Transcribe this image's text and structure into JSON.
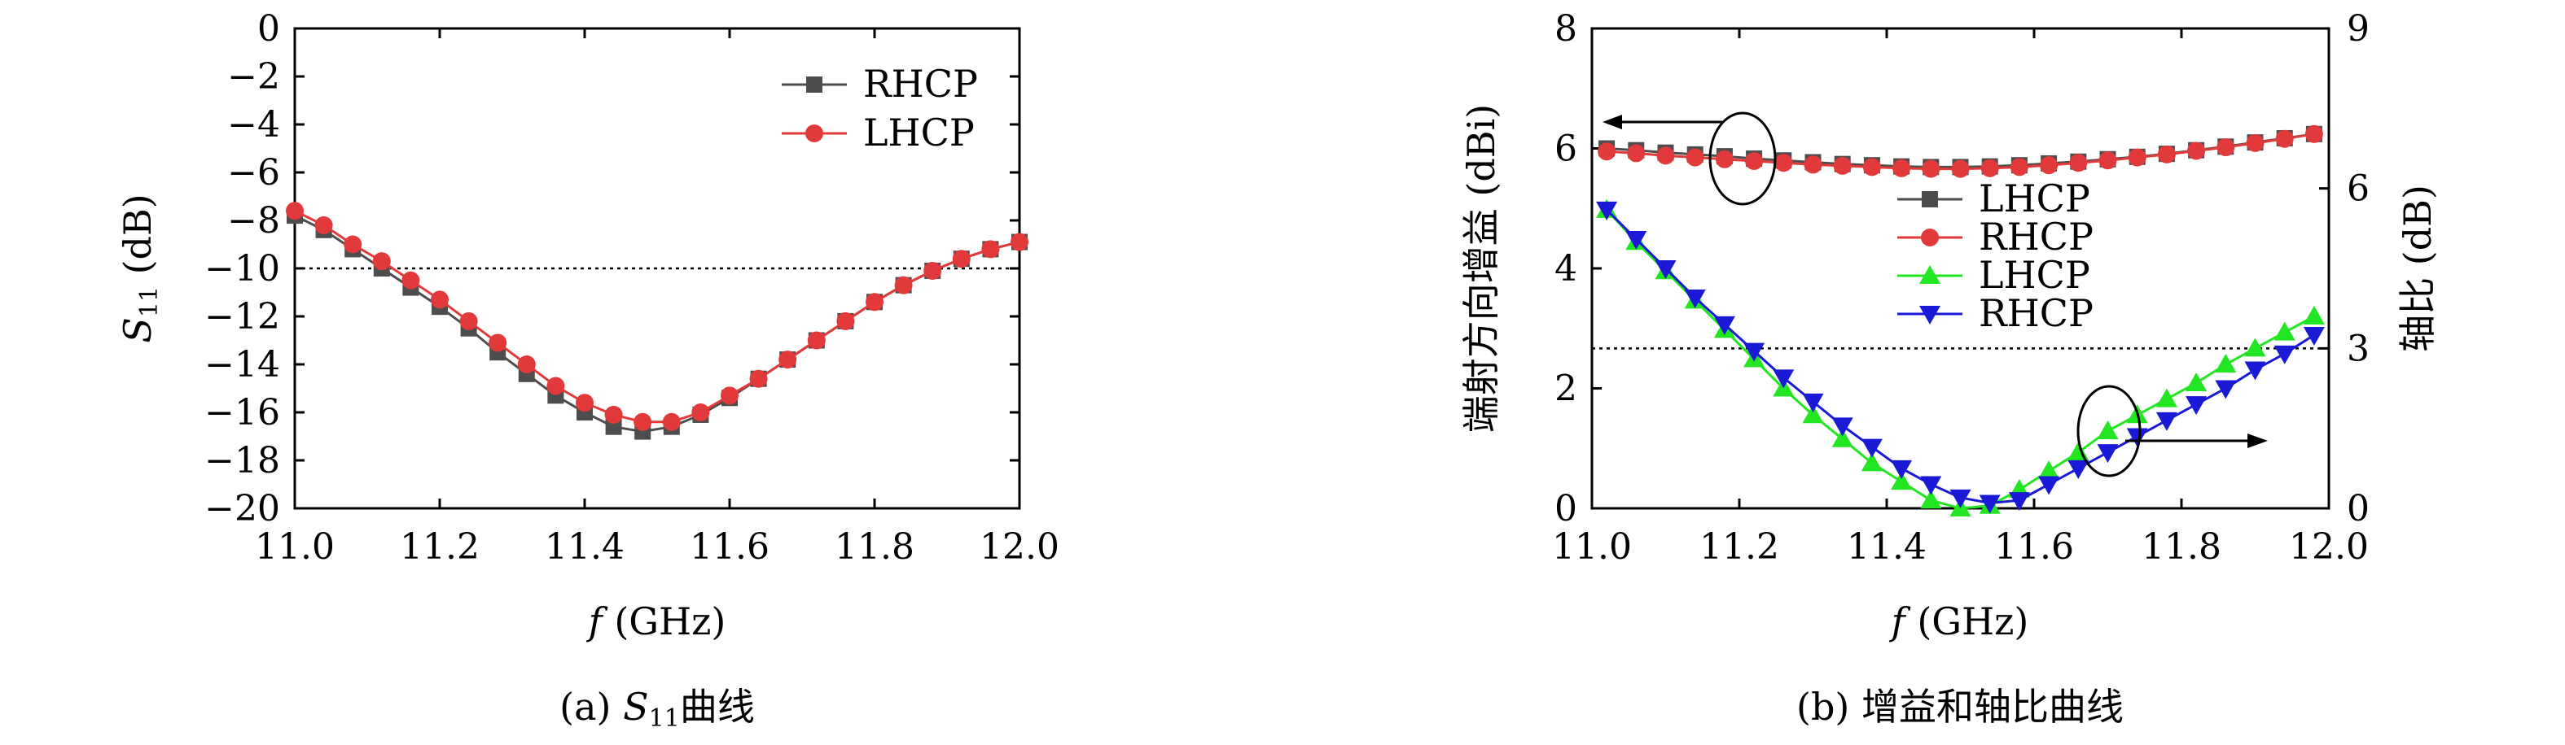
{
  "colors": {
    "dark": "#4d4d4d",
    "red": "#e23a3a",
    "green": "#22e622",
    "blue": "#1a1ad6",
    "ref": "#000000"
  },
  "chart_data": [
    {
      "type": "line",
      "panel_caption_prefix": "(a) ",
      "panel_caption_sym": "S",
      "panel_caption_sub": "11",
      "panel_caption_suffix": "曲线",
      "xlabel_sym": "f",
      "xlabel_unit": " (GHz)",
      "ylabel_sym": "S",
      "ylabel_sub": "11",
      "ylabel_unit": " (dB)",
      "xlim": [
        11.0,
        12.0
      ],
      "ylim": [
        -20,
        0
      ],
      "x_ticks": [
        "11.0",
        "11.2",
        "11.4",
        "11.6",
        "11.8",
        "12.0"
      ],
      "y_ticks": [
        "0",
        "−2",
        "−4",
        "−6",
        "−8",
        "−10",
        "−12",
        "−14",
        "−16",
        "−18",
        "−20"
      ],
      "reference_y": -10,
      "legend_position": "top-right",
      "x": [
        11.0,
        11.04,
        11.08,
        11.12,
        11.16,
        11.2,
        11.24,
        11.28,
        11.32,
        11.36,
        11.4,
        11.44,
        11.48,
        11.52,
        11.56,
        11.6,
        11.64,
        11.68,
        11.72,
        11.76,
        11.8,
        11.84,
        11.88,
        11.92,
        11.96,
        12.0
      ],
      "series": [
        {
          "name": "RHCP",
          "marker": "square",
          "color_key": "dark",
          "values": [
            -7.8,
            -8.4,
            -9.2,
            -10.0,
            -10.8,
            -11.6,
            -12.5,
            -13.5,
            -14.4,
            -15.3,
            -16.0,
            -16.6,
            -16.8,
            -16.6,
            -16.1,
            -15.4,
            -14.6,
            -13.8,
            -13.0,
            -12.2,
            -11.4,
            -10.7,
            -10.1,
            -9.6,
            -9.2,
            -8.9
          ]
        },
        {
          "name": "LHCP",
          "marker": "circle",
          "color_key": "red",
          "values": [
            -7.6,
            -8.2,
            -9.0,
            -9.7,
            -10.5,
            -11.3,
            -12.2,
            -13.1,
            -14.0,
            -14.9,
            -15.6,
            -16.1,
            -16.4,
            -16.4,
            -16.0,
            -15.3,
            -14.6,
            -13.8,
            -13.0,
            -12.2,
            -11.4,
            -10.7,
            -10.1,
            -9.6,
            -9.2,
            -8.9
          ]
        }
      ]
    },
    {
      "type": "line",
      "panel_caption": "(b) 增益和轴比曲线",
      "xlabel_sym": "f",
      "xlabel_unit": " (GHz)",
      "ylabel_left": "端射方向增益 (dBi)",
      "ylabel_right": "轴比 (dB)",
      "xlim": [
        11.0,
        12.0
      ],
      "ylim_left": [
        0,
        8
      ],
      "ylim_right": [
        0,
        9
      ],
      "x_ticks": [
        "11.0",
        "11.2",
        "11.4",
        "11.6",
        "11.8",
        "12.0"
      ],
      "y_ticks_left": [
        "0",
        "2",
        "4",
        "6",
        "8"
      ],
      "y_ticks_right": [
        "0",
        "3",
        "6",
        "9"
      ],
      "reference_y_right": 3,
      "legend_position": "center",
      "x": [
        11.02,
        11.06,
        11.1,
        11.14,
        11.18,
        11.22,
        11.26,
        11.3,
        11.34,
        11.38,
        11.42,
        11.46,
        11.5,
        11.54,
        11.58,
        11.62,
        11.66,
        11.7,
        11.74,
        11.78,
        11.82,
        11.86,
        11.9,
        11.94,
        11.98
      ],
      "series": [
        {
          "name": "LHCP",
          "axis": "left",
          "marker": "square",
          "color_key": "dark",
          "values": [
            6.0,
            5.97,
            5.93,
            5.9,
            5.87,
            5.83,
            5.8,
            5.77,
            5.74,
            5.72,
            5.7,
            5.69,
            5.69,
            5.7,
            5.72,
            5.75,
            5.78,
            5.82,
            5.86,
            5.91,
            5.97,
            6.03,
            6.1,
            6.17,
            6.24
          ]
        },
        {
          "name": "RHCP",
          "axis": "left",
          "marker": "circle",
          "color_key": "red",
          "values": [
            5.95,
            5.92,
            5.88,
            5.85,
            5.82,
            5.79,
            5.76,
            5.73,
            5.71,
            5.69,
            5.67,
            5.66,
            5.66,
            5.67,
            5.69,
            5.72,
            5.76,
            5.8,
            5.85,
            5.9,
            5.96,
            6.02,
            6.09,
            6.16,
            6.24
          ]
        },
        {
          "name": "LHCP",
          "axis": "right",
          "marker": "triangle-up",
          "color_key": "green",
          "values": [
            5.6,
            5.0,
            4.45,
            3.9,
            3.35,
            2.8,
            2.25,
            1.75,
            1.3,
            0.85,
            0.5,
            0.15,
            0.0,
            0.05,
            0.35,
            0.7,
            1.05,
            1.45,
            1.75,
            2.05,
            2.35,
            2.7,
            3.0,
            3.3,
            3.6
          ]
        },
        {
          "name": "RHCP",
          "axis": "right",
          "marker": "triangle-down",
          "color_key": "blue",
          "values": [
            5.6,
            5.05,
            4.5,
            3.95,
            3.45,
            2.95,
            2.45,
            2.0,
            1.55,
            1.15,
            0.75,
            0.45,
            0.2,
            0.1,
            0.15,
            0.45,
            0.75,
            1.05,
            1.35,
            1.65,
            1.95,
            2.25,
            2.6,
            2.9,
            3.25
          ]
        }
      ]
    }
  ]
}
